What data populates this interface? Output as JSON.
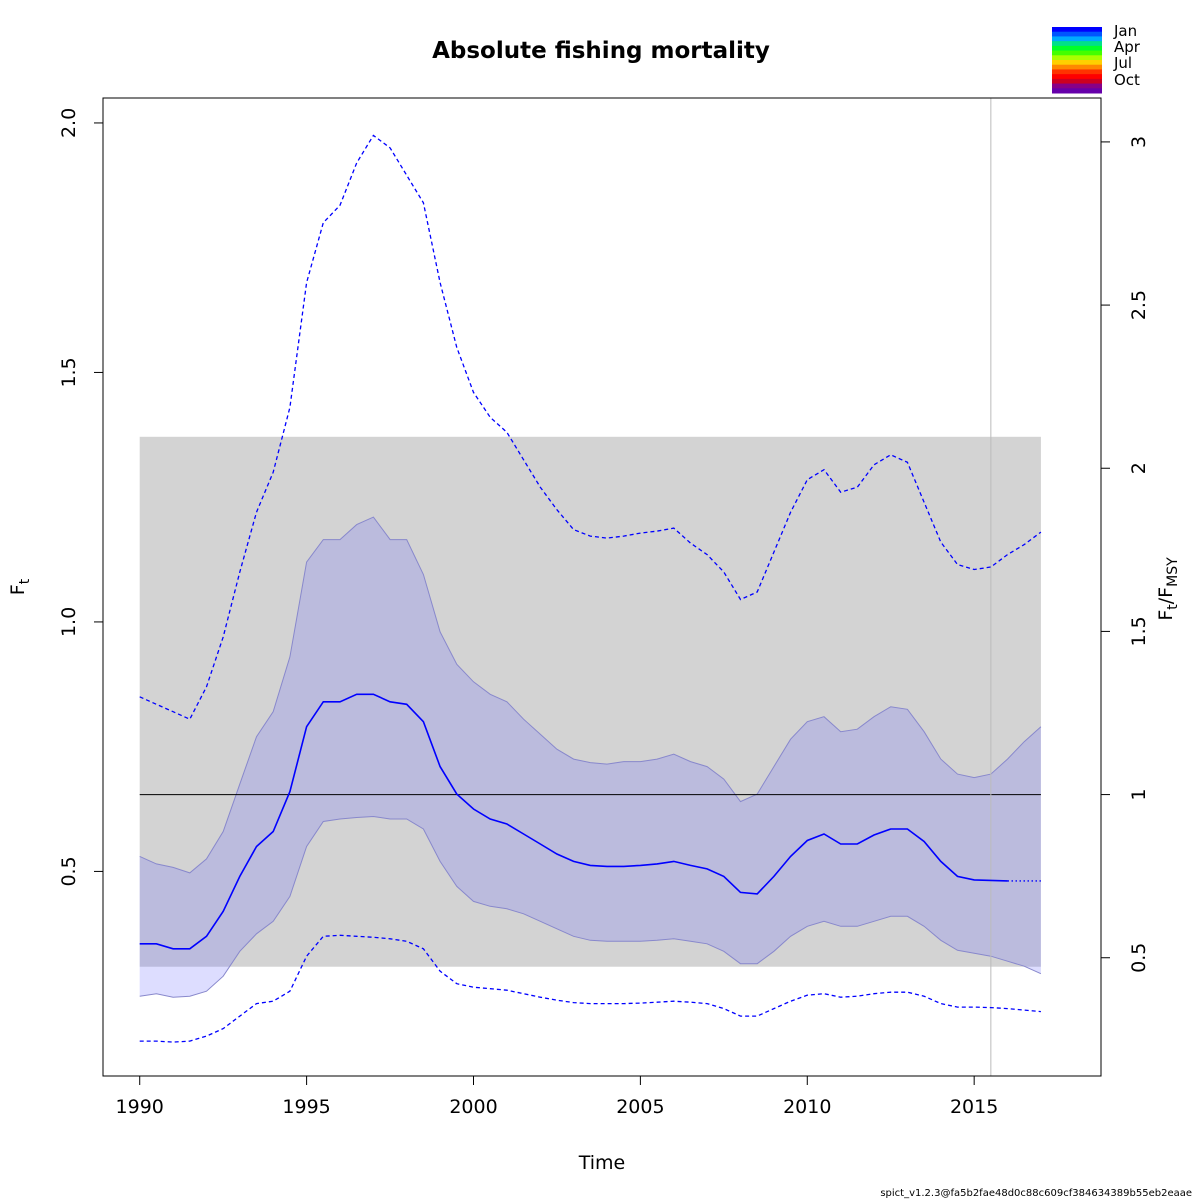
{
  "chart_data": {
    "type": "line",
    "title": "Absolute fishing mortality",
    "xlabel": "Time",
    "ylabel_left": {
      "base": "F",
      "sub": "t"
    },
    "ylabel_right": {
      "base": "F",
      "sub1": "t",
      "sep": "/F",
      "sub2": "MSY"
    },
    "xlim": [
      1988.9,
      2018.8
    ],
    "ylim": [
      0.09,
      2.05
    ],
    "x_ticks": [
      1990,
      1995,
      2000,
      2005,
      2010,
      2015
    ],
    "y_ticks": [
      0.5,
      1.0,
      1.5,
      2.0
    ],
    "y_tick_labels": [
      "0.5",
      "1.0",
      "1.5",
      "2.0"
    ],
    "fmsy": 0.654,
    "fmsy_ci": [
      0.309,
      1.371
    ],
    "right_ticks": [
      0.5,
      1,
      1.5,
      2,
      2.5,
      3
    ],
    "right_tick_labels": [
      "0.5",
      "1",
      "1.5",
      "2",
      "2.5",
      "3"
    ],
    "vline_x": 2015.5,
    "last_obs_x": 2016.0,
    "x": [
      1990,
      1990.5,
      1991,
      1991.5,
      1992,
      1992.5,
      1993,
      1993.5,
      1994,
      1994.5,
      1995,
      1995.5,
      1996,
      1996.5,
      1997,
      1997.5,
      1998,
      1998.5,
      1999,
      1999.5,
      2000,
      2000.5,
      2001,
      2001.5,
      2002,
      2002.5,
      2003,
      2003.5,
      2004,
      2004.5,
      2005,
      2005.5,
      2006,
      2006.5,
      2007,
      2007.5,
      2008,
      2008.5,
      2009,
      2009.5,
      2010,
      2010.5,
      2011,
      2011.5,
      2012,
      2012.5,
      2013,
      2013.5,
      2014,
      2014.5,
      2015,
      2015.5,
      2016,
      2016.5,
      2017
    ],
    "series": [
      {
        "role": "estimate",
        "values": [
          0.355,
          0.355,
          0.345,
          0.345,
          0.37,
          0.42,
          0.49,
          0.55,
          0.58,
          0.66,
          0.79,
          0.84,
          0.84,
          0.855,
          0.855,
          0.84,
          0.835,
          0.8,
          0.71,
          0.655,
          0.625,
          0.605,
          0.595,
          0.575,
          0.555,
          0.535,
          0.52,
          0.512,
          0.51,
          0.51,
          0.512,
          0.515,
          0.52,
          0.512,
          0.505,
          0.49,
          0.458,
          0.455,
          0.49,
          0.53,
          0.562,
          0.575,
          0.555,
          0.555,
          0.573,
          0.585,
          0.585,
          0.56,
          0.52,
          0.49,
          0.483,
          0.482,
          0.481,
          0.481,
          0.481
        ]
      },
      {
        "role": "ci95_lower",
        "values": [
          0.25,
          0.255,
          0.248,
          0.25,
          0.26,
          0.29,
          0.34,
          0.375,
          0.4,
          0.45,
          0.55,
          0.6,
          0.605,
          0.608,
          0.61,
          0.605,
          0.605,
          0.585,
          0.52,
          0.47,
          0.44,
          0.43,
          0.425,
          0.415,
          0.4,
          0.385,
          0.37,
          0.362,
          0.36,
          0.36,
          0.36,
          0.362,
          0.365,
          0.36,
          0.355,
          0.34,
          0.315,
          0.315,
          0.34,
          0.37,
          0.39,
          0.4,
          0.39,
          0.39,
          0.4,
          0.41,
          0.41,
          0.39,
          0.362,
          0.342,
          0.336,
          0.33,
          0.32,
          0.31,
          0.295
        ]
      },
      {
        "role": "ci95_upper",
        "values": [
          0.53,
          0.515,
          0.508,
          0.497,
          0.525,
          0.58,
          0.675,
          0.77,
          0.82,
          0.93,
          1.12,
          1.165,
          1.165,
          1.195,
          1.21,
          1.165,
          1.165,
          1.095,
          0.98,
          0.915,
          0.88,
          0.855,
          0.84,
          0.805,
          0.775,
          0.745,
          0.725,
          0.718,
          0.715,
          0.72,
          0.72,
          0.725,
          0.735,
          0.72,
          0.71,
          0.685,
          0.64,
          0.655,
          0.71,
          0.765,
          0.8,
          0.81,
          0.78,
          0.785,
          0.81,
          0.83,
          0.825,
          0.78,
          0.725,
          0.695,
          0.688,
          0.695,
          0.725,
          0.76,
          0.79
        ]
      },
      {
        "role": "pred_lower",
        "values": [
          0.16,
          0.16,
          0.158,
          0.16,
          0.17,
          0.185,
          0.21,
          0.235,
          0.24,
          0.26,
          0.33,
          0.37,
          0.372,
          0.37,
          0.368,
          0.365,
          0.36,
          0.345,
          0.3,
          0.275,
          0.268,
          0.265,
          0.262,
          0.255,
          0.248,
          0.242,
          0.237,
          0.235,
          0.235,
          0.235,
          0.236,
          0.238,
          0.24,
          0.238,
          0.235,
          0.225,
          0.21,
          0.21,
          0.225,
          0.24,
          0.252,
          0.255,
          0.248,
          0.25,
          0.255,
          0.258,
          0.258,
          0.25,
          0.235,
          0.228,
          0.228,
          0.227,
          0.225,
          0.222,
          0.219
        ]
      },
      {
        "role": "pred_upper",
        "values": [
          0.85,
          0.835,
          0.82,
          0.805,
          0.87,
          0.97,
          1.1,
          1.22,
          1.3,
          1.43,
          1.68,
          1.8,
          1.835,
          1.92,
          1.975,
          1.95,
          1.895,
          1.84,
          1.68,
          1.55,
          1.46,
          1.41,
          1.38,
          1.325,
          1.27,
          1.225,
          1.185,
          1.172,
          1.168,
          1.172,
          1.178,
          1.182,
          1.188,
          1.158,
          1.135,
          1.1,
          1.045,
          1.06,
          1.14,
          1.22,
          1.285,
          1.305,
          1.26,
          1.27,
          1.315,
          1.335,
          1.32,
          1.24,
          1.16,
          1.115,
          1.105,
          1.11,
          1.135,
          1.155,
          1.18
        ]
      }
    ],
    "legend": {
      "placement": "top-right",
      "colors": [
        "#0000ff",
        "#0055ff",
        "#00aaff",
        "#00e08a",
        "#00ff2a",
        "#44ff00",
        "#aaff00",
        "#ffd000",
        "#ff8800",
        "#ff3300",
        "#ff0000",
        "#cc0022",
        "#880088",
        "#6600aa"
      ],
      "labels": [
        "Jan",
        "Apr",
        "Jul",
        "Oct"
      ]
    },
    "colors": {
      "ci_band": "#d3d3d3",
      "ci95": "#bbbbdd",
      "ci95_edge": "#8888cc",
      "ci95_tail": "#ddddff",
      "estimate": "#0000ff",
      "ref_line": "#000000",
      "vline": "#bbbbbb"
    }
  },
  "footer": "spict_v1.2.3@fa5b2fae48d0c88c609cf384634389b55eb2eaae"
}
